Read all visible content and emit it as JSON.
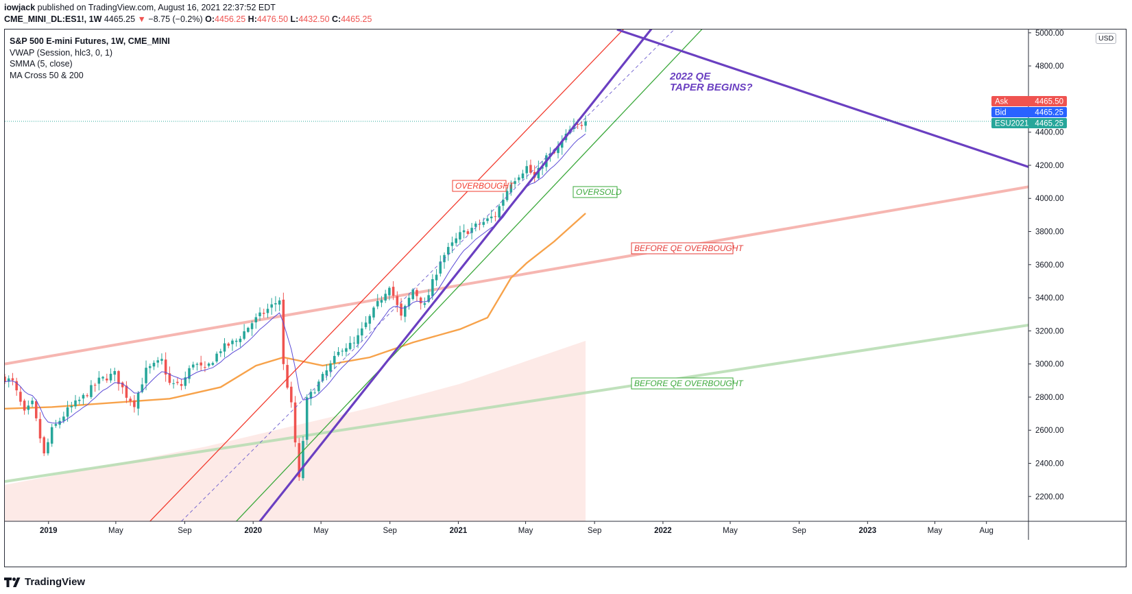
{
  "header": {
    "author": "iowjack",
    "published_text": "published on TradingView.com, August 16, 2021 22:37:52 EDT",
    "symbol": "CME_MINI_DL:ES1!, 1W",
    "last": "4465.25",
    "change": "−8.75 (−0.2%)",
    "open_label": "O:",
    "open": "4456.25",
    "high_label": "H:",
    "high": "4476.50",
    "low_label": "L:",
    "low": "4432.50",
    "close_label": "C:",
    "close": "4465.25"
  },
  "legend": {
    "title": "S&P 500 E-mini Futures, 1W, CME_MINI",
    "studies": [
      "VWAP (Session, hlc3, 0, 1)",
      "SMMA (5, close)",
      "MA Cross 50 & 200"
    ]
  },
  "currency": "USD",
  "price_tags": {
    "ask": {
      "label": "Ask",
      "value": "4465.50",
      "color": "#ef5350"
    },
    "bid": {
      "label": "Bid",
      "value": "4465.25",
      "color": "#2962ff"
    },
    "last": {
      "label": "ESU2021",
      "value": "4465.25",
      "color": "#26a69a"
    }
  },
  "annotations": {
    "overbought": "OVERBOUGHT",
    "oversold": "OVERSOLD",
    "before_qe_upper": "BEFORE QE OVERBOUGHT",
    "before_qe_lower": "BEFORE QE OVERBOUGHT",
    "taper_line1": "2022 QE",
    "taper_line2": "TAPER BEGINS?"
  },
  "footer": {
    "brand": "TradingView"
  },
  "colors": {
    "up": "#26a69a",
    "down": "#ef5350",
    "purple": "#6a3fc1",
    "orange": "#f7a24a",
    "red_channel": "#f23b2e",
    "green_channel": "#3aa83a",
    "pink": "#f4a9a3",
    "light_green": "#b5dcb0"
  },
  "chart_data": {
    "type": "candlestick",
    "y_axis": {
      "min": 2050,
      "max": 5020,
      "ticks": [
        2200,
        2400,
        2600,
        2800,
        3000,
        3200,
        3400,
        3600,
        3800,
        4000,
        4200,
        4400,
        4800,
        5000
      ],
      "tick_labels": [
        "2200.00",
        "2400.00",
        "2600.00",
        "2800.00",
        "3000.00",
        "3200.00",
        "3400.00",
        "3600.00",
        "3800.00",
        "4000.00",
        "4200.00",
        "4400.00",
        "4800.00",
        "5000.00"
      ]
    },
    "x_axis": {
      "start": "2018-10-15",
      "end": "2023-10-15",
      "labels": [
        {
          "text": "2019",
          "date": "2019-01-01",
          "bold": true
        },
        {
          "text": "May",
          "date": "2019-05-01"
        },
        {
          "text": "Sep",
          "date": "2019-09-01"
        },
        {
          "text": "2020",
          "date": "2020-01-01",
          "bold": true
        },
        {
          "text": "May",
          "date": "2020-05-01"
        },
        {
          "text": "Sep",
          "date": "2020-09-01"
        },
        {
          "text": "2021",
          "date": "2021-01-01",
          "bold": true
        },
        {
          "text": "May",
          "date": "2021-05-01"
        },
        {
          "text": "Sep",
          "date": "2021-09-01"
        },
        {
          "text": "2022",
          "date": "2022-01-01",
          "bold": true
        },
        {
          "text": "May",
          "date": "2022-05-01"
        },
        {
          "text": "Sep",
          "date": "2022-09-01"
        },
        {
          "text": "2023",
          "date": "2023-01-01",
          "bold": true
        },
        {
          "text": "May",
          "date": "2023-05-01"
        },
        {
          "text": "Aug",
          "date": "2023-08-01"
        }
      ]
    },
    "price_path": [
      [
        "2018-10-15",
        2915
      ],
      [
        "2018-10-29",
        2890
      ],
      [
        "2018-11-19",
        2700
      ],
      [
        "2018-12-03",
        2760
      ],
      [
        "2018-12-24",
        2450
      ],
      [
        "2019-01-07",
        2600
      ],
      [
        "2019-02-04",
        2720
      ],
      [
        "2019-03-04",
        2800
      ],
      [
        "2019-04-01",
        2900
      ],
      [
        "2019-04-29",
        2940
      ],
      [
        "2019-05-20",
        2810
      ],
      [
        "2019-06-03",
        2760
      ],
      [
        "2019-06-24",
        2960
      ],
      [
        "2019-07-22",
        3020
      ],
      [
        "2019-08-05",
        2880
      ],
      [
        "2019-08-26",
        2870
      ],
      [
        "2019-09-16",
        3010
      ],
      [
        "2019-10-07",
        2960
      ],
      [
        "2019-11-04",
        3090
      ],
      [
        "2019-12-02",
        3140
      ],
      [
        "2019-12-30",
        3250
      ],
      [
        "2020-02-17",
        3390
      ],
      [
        "2020-02-24",
        2990
      ],
      [
        "2020-03-09",
        2750
      ],
      [
        "2020-03-23",
        2300
      ],
      [
        "2020-04-06",
        2780
      ],
      [
        "2020-05-04",
        2920
      ],
      [
        "2020-06-08",
        3100
      ],
      [
        "2020-06-29",
        3120
      ],
      [
        "2020-07-27",
        3280
      ],
      [
        "2020-08-31",
        3480
      ],
      [
        "2020-09-21",
        3280
      ],
      [
        "2020-10-12",
        3450
      ],
      [
        "2020-11-02",
        3350
      ],
      [
        "2020-11-30",
        3630
      ],
      [
        "2021-01-04",
        3780
      ],
      [
        "2021-02-22",
        3870
      ],
      [
        "2021-03-08",
        3900
      ],
      [
        "2021-04-05",
        4100
      ],
      [
        "2021-05-03",
        4190
      ],
      [
        "2021-05-17",
        4120
      ],
      [
        "2021-06-07",
        4250
      ],
      [
        "2021-06-21",
        4270
      ],
      [
        "2021-07-19",
        4410
      ],
      [
        "2021-08-16",
        4465
      ]
    ],
    "last_close": 4465.25,
    "ma50_path": [
      [
        "2018-10-15",
        2730
      ],
      [
        "2019-01-07",
        2740
      ],
      [
        "2019-04-01",
        2760
      ],
      [
        "2019-08-05",
        2790
      ],
      [
        "2019-11-04",
        2860
      ],
      [
        "2020-01-06",
        2990
      ],
      [
        "2020-02-24",
        3040
      ],
      [
        "2020-05-04",
        2990
      ],
      [
        "2020-07-27",
        3040
      ],
      [
        "2020-10-12",
        3130
      ],
      [
        "2021-01-04",
        3210
      ],
      [
        "2021-02-22",
        3280
      ],
      [
        "2021-04-05",
        3520
      ],
      [
        "2021-05-03",
        3610
      ],
      [
        "2021-06-21",
        3740
      ],
      [
        "2021-08-16",
        3910
      ]
    ],
    "vwap_area": [
      [
        "2018-10-15",
        2270
      ],
      [
        "2019-10-07",
        2500
      ],
      [
        "2020-08-03",
        2740
      ],
      [
        "2021-01-04",
        2880
      ],
      [
        "2021-08-16",
        3140
      ]
    ],
    "trendlines": [
      {
        "name": "overbought-channel",
        "p1": [
          "2019-07-01",
          2050
        ],
        "p2": [
          "2021-10-25",
          5030
        ],
        "color": "#f23b2e",
        "width": 1.3
      },
      {
        "name": "oversold-channel",
        "p1": [
          "2019-12-02",
          2050
        ],
        "p2": [
          "2022-03-14",
          5030
        ],
        "color": "#3aa83a",
        "width": 1.3
      },
      {
        "name": "midline-dashed",
        "p1": [
          "2019-08-26",
          2050
        ],
        "p2": [
          "2022-01-24",
          5030
        ],
        "color": "#6a5acd",
        "width": 0.9,
        "dash": true
      },
      {
        "name": "purple-uptrend",
        "p1": [
          "2020-01-13",
          2050
        ],
        "p2": [
          "2021-12-13",
          5030
        ],
        "color": "#6a3fc1",
        "width": 3.2
      },
      {
        "name": "purple-downtrend",
        "p1": [
          "2021-10-11",
          5020
        ],
        "p2": [
          "2023-10-15",
          4190
        ],
        "color": "#6a3fc1",
        "width": 3.2
      },
      {
        "name": "before-qe-pink",
        "p1": [
          "2018-10-15",
          3000
        ],
        "p2": [
          "2023-10-15",
          4070
        ],
        "color": "#f4a9a3",
        "width": 4
      },
      {
        "name": "before-qe-green",
        "p1": [
          "2018-10-15",
          2290
        ],
        "p2": [
          "2023-10-15",
          3235
        ],
        "color": "#b5dcb0",
        "width": 4
      }
    ]
  }
}
